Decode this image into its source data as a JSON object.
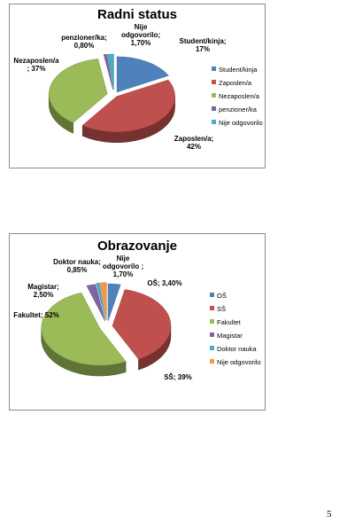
{
  "chart_data": [
    {
      "type": "pie",
      "title": "Radni status",
      "categories": [
        "Student/kinja",
        "Zaposlen/a",
        "Nezaposlen/a",
        "penzioner/ka",
        "Nije odgovorilo"
      ],
      "values": [
        17,
        42,
        37,
        0.8,
        1.7
      ],
      "data_labels": [
        [
          "Student/kinja;",
          "17%"
        ],
        [
          "Zaposlen/a;",
          "42%"
        ],
        [
          "Nezaposlen/a",
          "; 37%"
        ],
        [
          "penzioner/ka;",
          "0,80%"
        ],
        [
          "Nije",
          "odgovorilo;",
          "1,70%"
        ]
      ],
      "colors": [
        "#4f81bd",
        "#c0504d",
        "#9bbb59",
        "#8064a2",
        "#4bacc6"
      ],
      "legend": "right",
      "style": "3d-exploded"
    },
    {
      "type": "pie",
      "title": "Obrazovanje",
      "categories": [
        "OŠ",
        "SŠ",
        "Fakultet",
        "Magistar",
        "Doktor nauka",
        "Nije odgovorilo"
      ],
      "values": [
        3.4,
        39,
        52,
        2.5,
        0.85,
        1.7
      ],
      "data_labels": [
        [
          "OŠ; 3,40%"
        ],
        [
          "SŠ; 39%"
        ],
        [
          "Fakultet; 52%"
        ],
        [
          "Magistar;",
          "2,50%"
        ],
        [
          "Doktor nauka;",
          "0,85%"
        ],
        [
          "Nije",
          "odgovorilo ;",
          "1,70%"
        ]
      ],
      "colors": [
        "#4f81bd",
        "#c0504d",
        "#9bbb59",
        "#8064a2",
        "#4bacc6",
        "#f79646"
      ],
      "legend": "right",
      "style": "3d-exploded"
    }
  ],
  "page_number": "5"
}
